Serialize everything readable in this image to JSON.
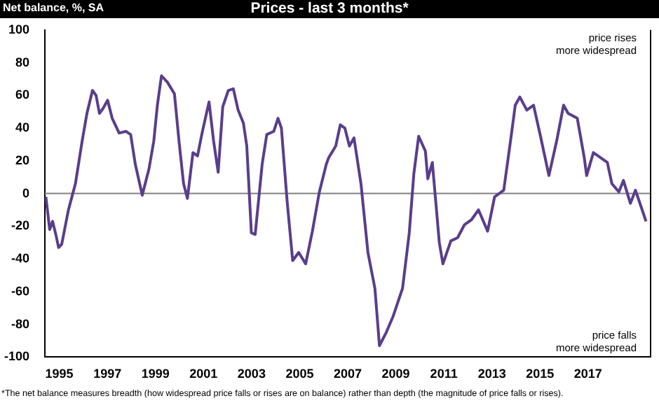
{
  "chart_data": {
    "type": "line",
    "title": "Prices - last 3 months*",
    "ylabel": "Net balance, %, SA",
    "annotations": [
      "price rises\nmore widespread",
      "price falls\nmore widespread",
      "*The net balance measures breadth (how widespread price falls or rises are on balance)  rather than depth (the magnitude of price falls or rises)."
    ],
    "series": [
      {
        "color": "#5a3d8c",
        "x": [
          1994.44,
          1994.6,
          1994.72,
          1994.87,
          1994.97,
          1995.1,
          1995.38,
          1995.67,
          1995.96,
          1996.15,
          1996.38,
          1996.53,
          1996.67,
          1996.82,
          1997.01,
          1997.2,
          1997.49,
          1997.78,
          1997.97,
          1998.16,
          1998.45,
          1998.73,
          1998.93,
          1999.08,
          1999.25,
          1999.5,
          1999.79,
          1999.98,
          2000.17,
          2000.33,
          2000.56,
          2000.75,
          2000.94,
          2001.23,
          2001.42,
          2001.61,
          2001.8,
          2002.03,
          2002.24,
          2002.44,
          2002.66,
          2002.8,
          2002.99,
          2003.15,
          2003.44,
          2003.63,
          2003.92,
          2004.1,
          2004.24,
          2004.48,
          2004.71,
          2004.96,
          2005.25,
          2005.53,
          2005.82,
          2006.11,
          2006.21,
          2006.5,
          2006.69,
          2006.88,
          2007.07,
          2007.26,
          2007.55,
          2007.84,
          2008.13,
          2008.32,
          2008.6,
          2008.89,
          2009.28,
          2009.56,
          2009.75,
          2009.95,
          2010.23,
          2010.33,
          2010.52,
          2010.81,
          2010.96,
          2011.29,
          2011.57,
          2011.86,
          2012.15,
          2012.44,
          2012.82,
          2013.11,
          2013.49,
          2013.78,
          2013.97,
          2014.16,
          2014.45,
          2014.73,
          2015.02,
          2015.37,
          2015.69,
          2015.98,
          2016.17,
          2016.55,
          2016.84,
          2016.94,
          2017.22,
          2017.51,
          2017.8,
          2017.99,
          2018.28,
          2018.47,
          2018.76,
          2018.97,
          2019.25,
          2019.41
        ],
        "values": [
          -2,
          -22,
          -17,
          -26,
          -33,
          -31,
          -10,
          6,
          33,
          49,
          63,
          60,
          49,
          52,
          57,
          46,
          37,
          38,
          36,
          18,
          -1,
          15,
          32,
          54,
          72,
          68,
          61,
          32,
          6,
          -3,
          25,
          23,
          37,
          56,
          32,
          13,
          53,
          63,
          64,
          51,
          43,
          29,
          -24,
          -25,
          18,
          36,
          38,
          46,
          40,
          -5,
          -41,
          -36,
          -43,
          -23,
          1,
          18,
          22,
          29,
          42,
          40,
          29,
          34,
          6,
          -36,
          -58,
          -93,
          -85,
          -75,
          -58,
          -24,
          12,
          35,
          26,
          9,
          19,
          -30,
          -43,
          -29,
          -27,
          -19,
          -16,
          -10,
          -23,
          -2,
          2,
          33,
          54,
          59,
          51,
          54,
          35,
          11,
          32,
          54,
          49,
          46,
          22,
          11,
          25,
          22,
          19,
          6,
          1,
          8,
          -6,
          2,
          -10,
          -17
        ]
      }
    ],
    "xlim": [
      1994.4,
      2019.6
    ],
    "xticks": [
      1995,
      1997,
      1999,
      2001,
      2003,
      2005,
      2007,
      2009,
      2011,
      2013,
      2015,
      2017
    ],
    "ylim": [
      -100,
      100
    ],
    "yticks": [
      -100,
      -80,
      -60,
      -40,
      -20,
      0,
      20,
      40,
      60,
      80,
      100
    ],
    "ref_lines": [
      {
        "axis": "y",
        "value": 0,
        "color": "#808080"
      }
    ],
    "grid": false,
    "legend": false,
    "marker": "none",
    "line_style": "solid"
  }
}
